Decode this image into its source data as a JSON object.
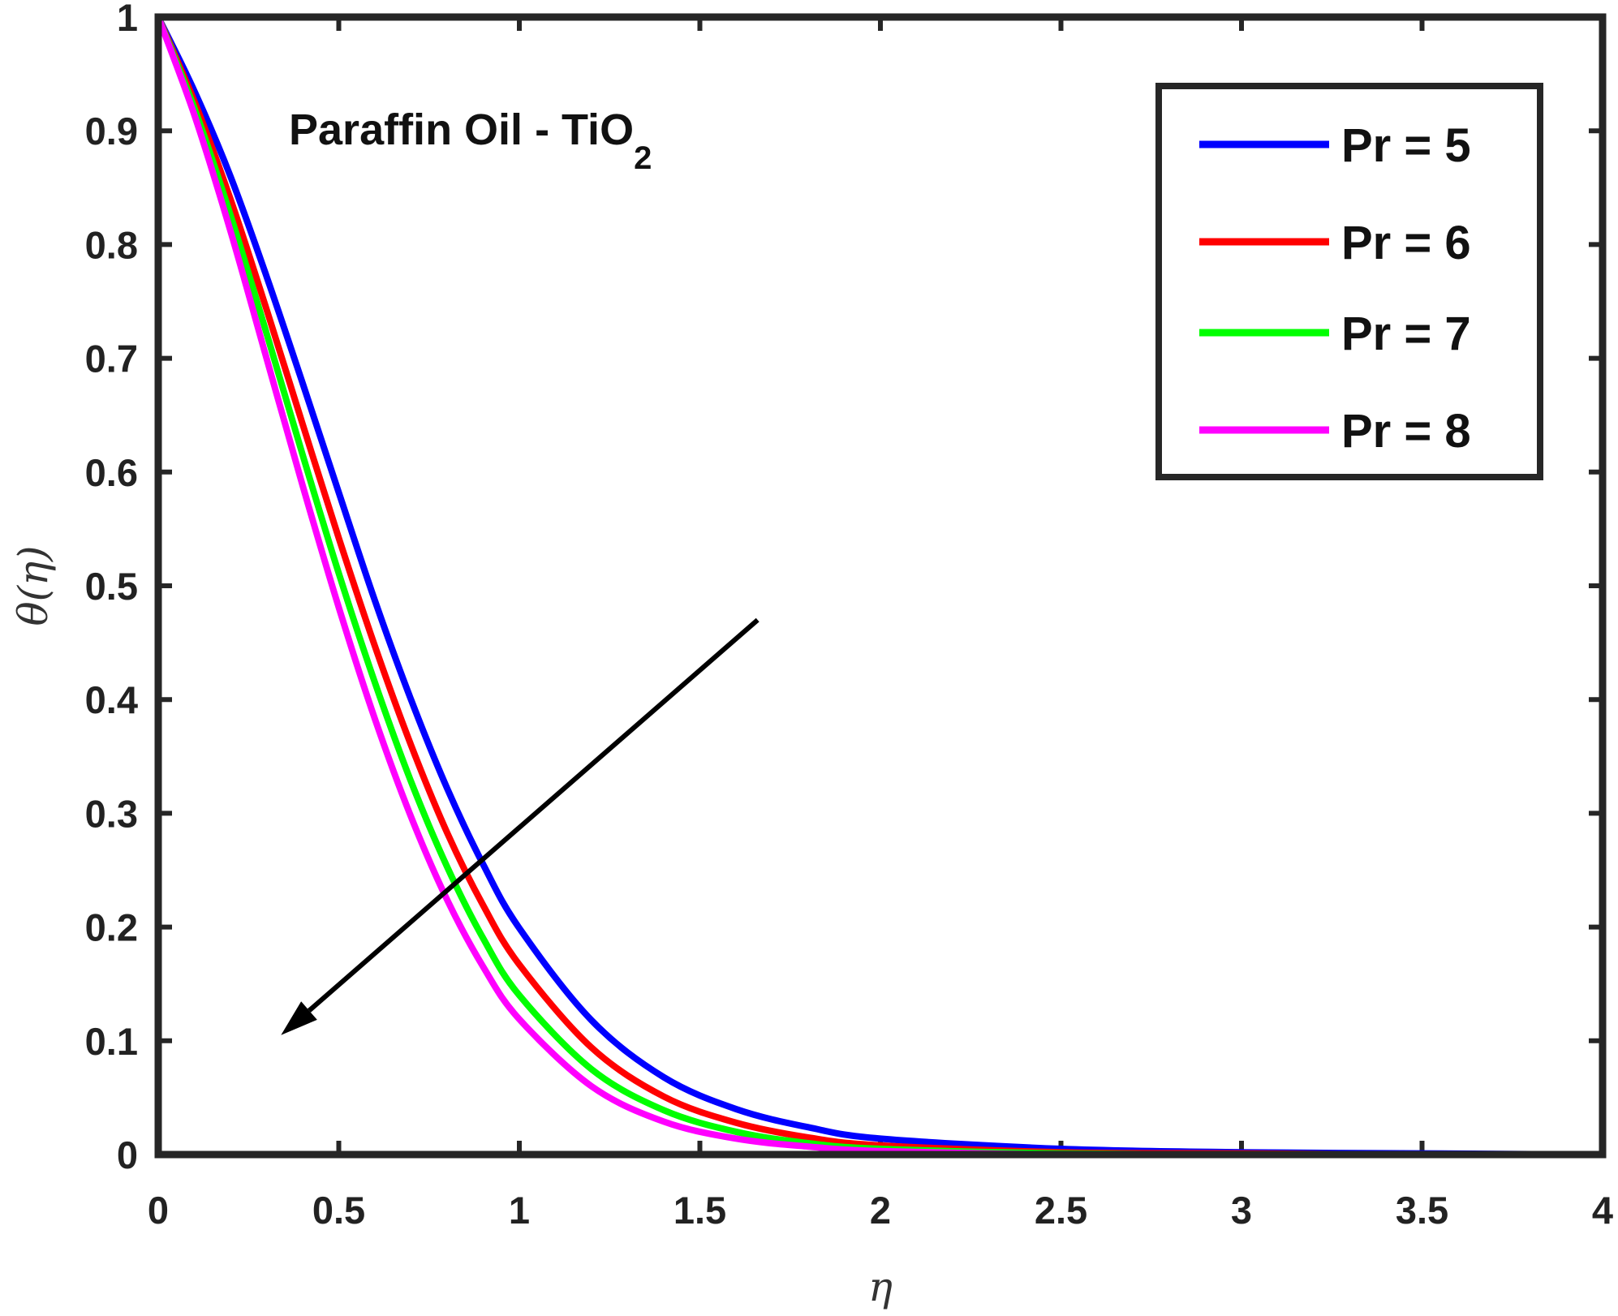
{
  "chart_data": {
    "type": "line",
    "title": "",
    "xlabel": "η",
    "ylabel": "θ(η)",
    "xlim": [
      0,
      4
    ],
    "ylim": [
      0,
      1
    ],
    "x_ticks": [
      "0",
      "0.5",
      "1",
      "1.5",
      "2",
      "2.5",
      "3",
      "3.5",
      "4"
    ],
    "y_ticks": [
      "0",
      "0.1",
      "0.2",
      "0.3",
      "0.4",
      "0.5",
      "0.6",
      "0.7",
      "0.8",
      "0.9",
      "1"
    ],
    "grid": false,
    "legend_position": "top-right",
    "x": [
      0,
      0.1,
      0.2,
      0.3,
      0.4,
      0.5,
      0.6,
      0.7,
      0.8,
      0.9,
      1.0,
      1.2,
      1.4,
      1.6,
      1.8,
      2.0,
      2.5,
      3.0,
      3.5,
      4.0
    ],
    "series": [
      {
        "name": "Pr = 5",
        "color": "#0000ff",
        "values": [
          1.0,
          0.935,
          0.86,
          0.772,
          0.678,
          0.582,
          0.487,
          0.4,
          0.322,
          0.255,
          0.199,
          0.118,
          0.068,
          0.04,
          0.024,
          0.014,
          0.005,
          0.002,
          0.001,
          0.0
        ]
      },
      {
        "name": "Pr = 6",
        "color": "#ff0000",
        "values": [
          1.0,
          0.926,
          0.84,
          0.743,
          0.642,
          0.542,
          0.447,
          0.36,
          0.283,
          0.219,
          0.167,
          0.094,
          0.051,
          0.028,
          0.015,
          0.008,
          0.002,
          0.001,
          0.0,
          0.0
        ]
      },
      {
        "name": "Pr = 7",
        "color": "#00ff00",
        "values": [
          1.0,
          0.92,
          0.826,
          0.722,
          0.615,
          0.511,
          0.415,
          0.328,
          0.253,
          0.19,
          0.14,
          0.075,
          0.039,
          0.02,
          0.01,
          0.005,
          0.001,
          0.0,
          0.0,
          0.0
        ]
      },
      {
        "name": "Pr = 8",
        "color": "#ff00ff",
        "values": [
          1.0,
          0.914,
          0.812,
          0.7,
          0.588,
          0.481,
          0.383,
          0.297,
          0.224,
          0.165,
          0.119,
          0.06,
          0.029,
          0.014,
          0.007,
          0.003,
          0.0,
          0.0,
          0.0,
          0.0
        ]
      }
    ],
    "annotations": {
      "text_main": "Paraffin Oil - TiO",
      "text_subscript": "2",
      "arrow": {
        "from": [
          1.66,
          0.47
        ],
        "to": [
          0.34,
          0.105
        ]
      }
    }
  }
}
